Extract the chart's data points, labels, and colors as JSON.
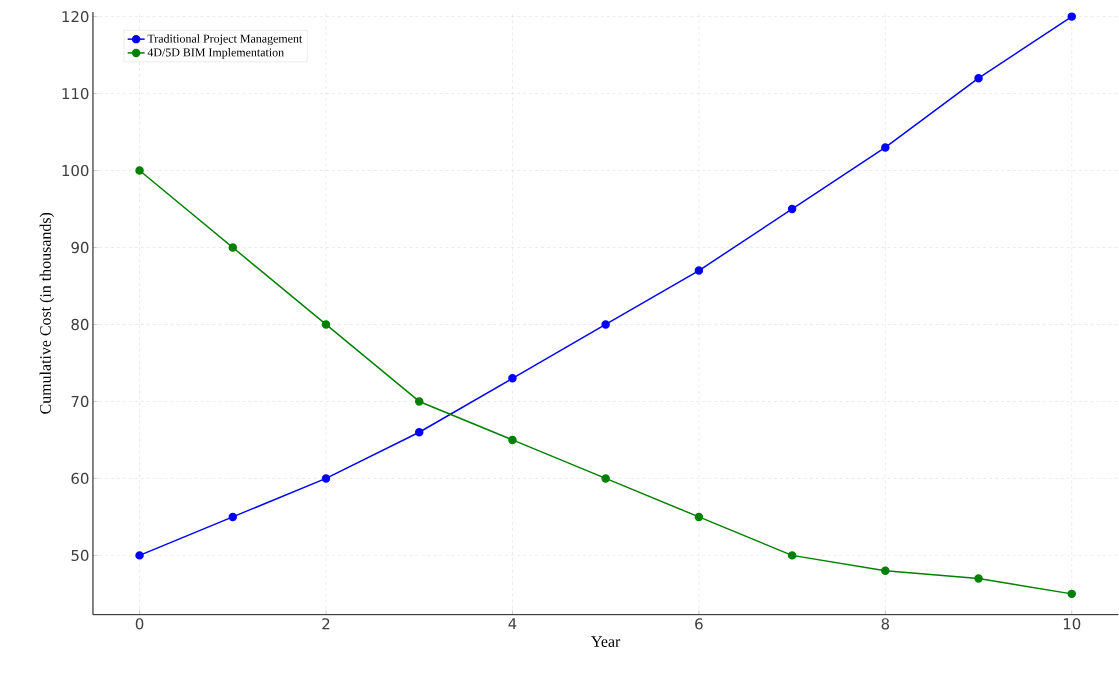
{
  "chart_data": {
    "type": "line",
    "xlabel": "Year",
    "ylabel": "Cumulative Cost (in thousands)",
    "x": [
      0,
      1,
      2,
      3,
      4,
      5,
      6,
      7,
      8,
      9,
      10
    ],
    "series": [
      {
        "name": "Traditional Project Management",
        "color": "#0000ff",
        "values": [
          50,
          55,
          60,
          66,
          73,
          80,
          87,
          95,
          103,
          112,
          120
        ]
      },
      {
        "name": "4D/5D BIM Implementation",
        "color": "#008000",
        "values": [
          100,
          90,
          80,
          70,
          65,
          60,
          55,
          50,
          48,
          47,
          45
        ]
      }
    ],
    "xlim": [
      -0.5,
      10.5
    ],
    "ylim": [
      42.3,
      120.6
    ],
    "xticks": [
      0,
      2,
      4,
      6,
      8,
      10
    ],
    "yticks": [
      50,
      60,
      70,
      80,
      90,
      100,
      110,
      120
    ],
    "grid": true,
    "legend": "top left",
    "marker": "circle",
    "line_style": "solid"
  }
}
